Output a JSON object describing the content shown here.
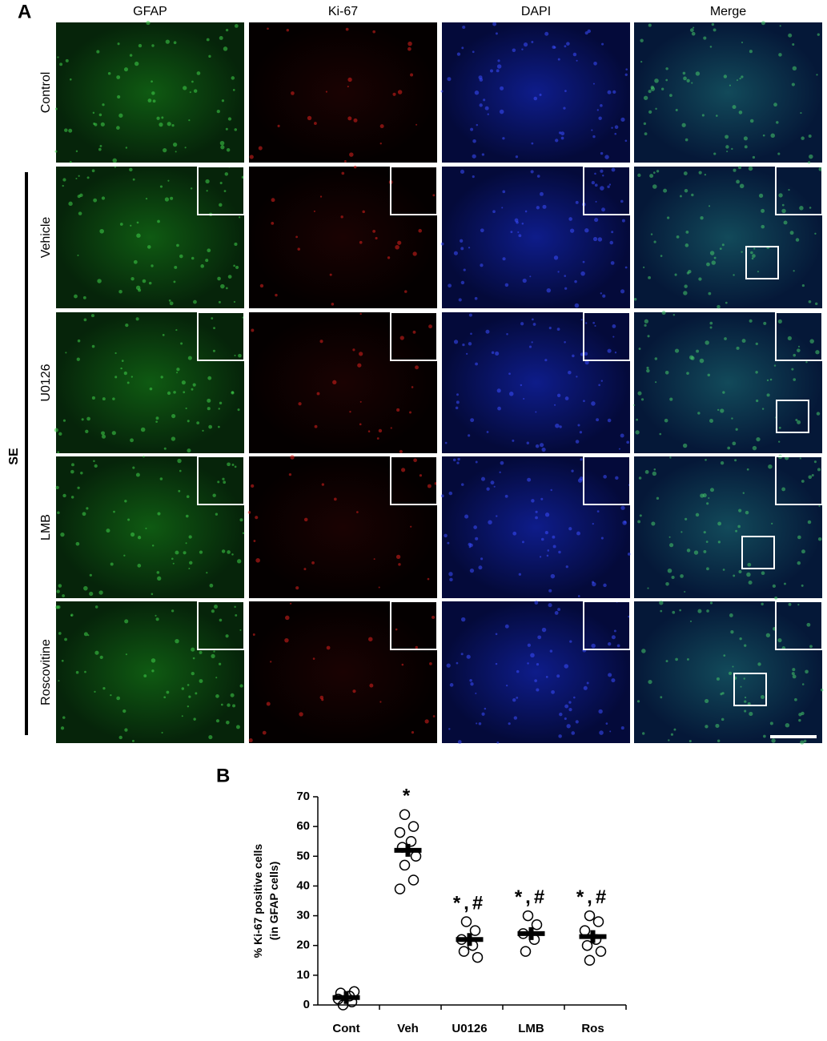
{
  "panel_a": {
    "label": "A",
    "columns": [
      "GFAP",
      "Ki-67",
      "DAPI",
      "Merge"
    ],
    "rows": [
      "Control",
      "Vehicle",
      "U0126",
      "LMB",
      "Roscovitine"
    ],
    "group": "SE"
  },
  "chart_data": {
    "type": "scatter",
    "panel_label": "B",
    "y_label": [
      "% Ki-67 positive cells",
      "(in GFAP cells)"
    ],
    "categories": [
      "Cont",
      "Veh",
      "U0126",
      "LMB",
      "Ros"
    ],
    "points": [
      [
        0,
        1,
        2,
        3,
        4,
        4.5
      ],
      [
        64,
        60,
        58,
        55,
        53,
        50,
        47,
        42,
        39
      ],
      [
        28,
        25,
        22,
        20,
        18,
        16
      ],
      [
        30,
        27,
        24,
        22,
        18
      ],
      [
        30,
        28,
        25,
        22,
        20,
        18,
        15
      ]
    ],
    "means": [
      2.5,
      52,
      22,
      24,
      23
    ],
    "annotations": [
      null,
      "*",
      "*,#",
      "*,#",
      "*,#"
    ],
    "ylim": [
      0,
      70
    ],
    "yticks": [
      0,
      10,
      20,
      30,
      40,
      50,
      60,
      70
    ]
  }
}
